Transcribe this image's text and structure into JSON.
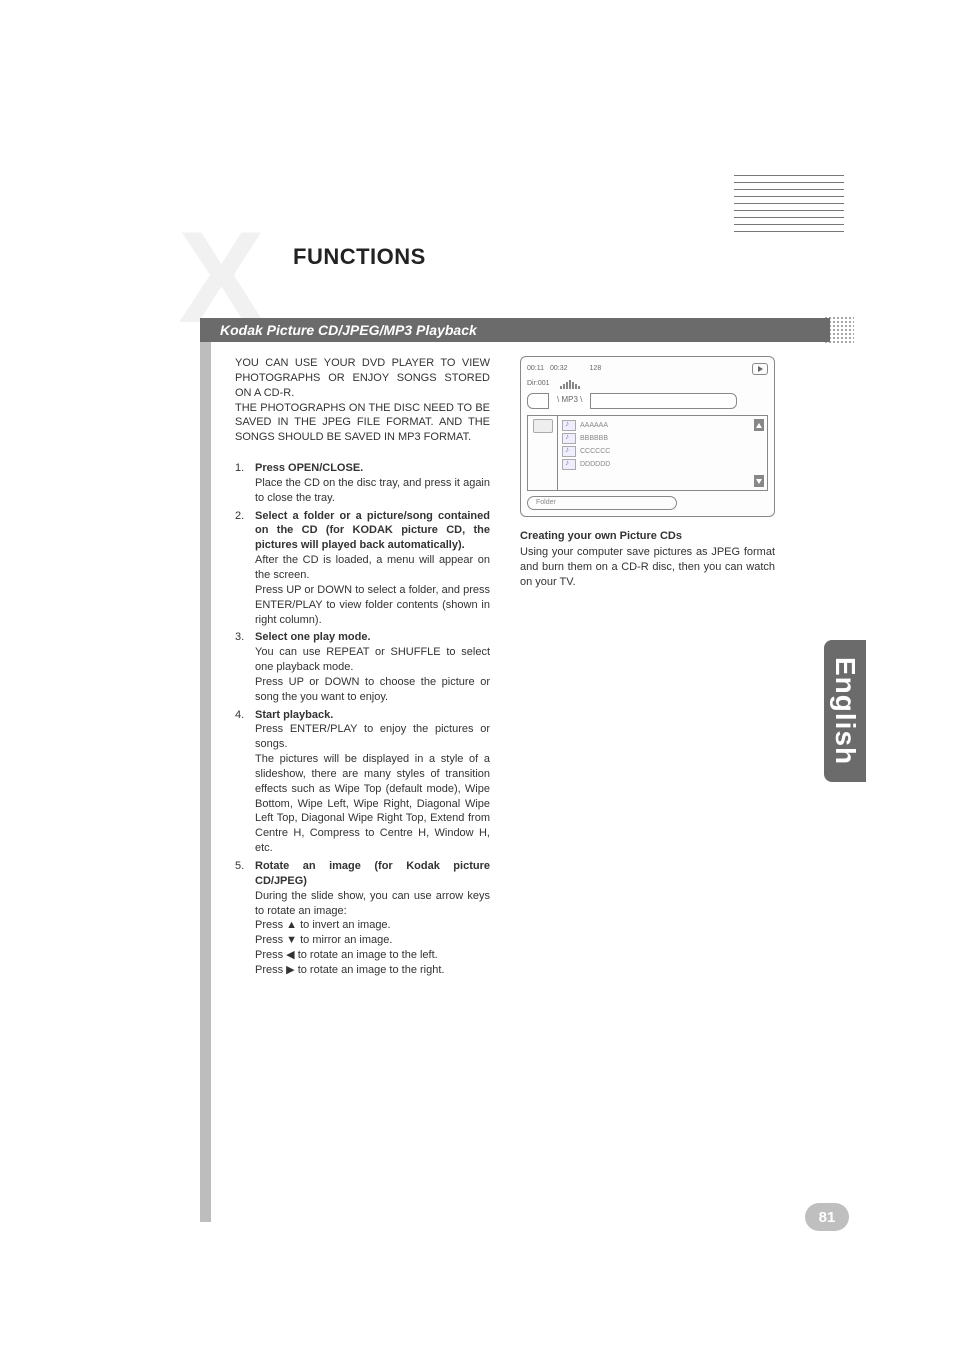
{
  "header": {
    "title": "FUNCTIONS"
  },
  "section_bar": "Kodak Picture CD/JPEG/MP3 Playback",
  "intro": "YOU CAN USE YOUR DVD PLAYER TO VIEW PHOTOGRAPHS OR ENJOY SONGS STORED ON A CD-R.\nTHE PHOTOGRAPHS ON THE DISC NEED TO BE SAVED IN THE JPEG FILE FORMAT. AND THE SONGS SHOULD BE SAVED IN MP3 FORMAT.",
  "steps": [
    {
      "num": "1.",
      "title": "Press OPEN/CLOSE.",
      "body": "Place the CD on the disc tray, and press it again to close the tray."
    },
    {
      "num": "2.",
      "title": "Select a folder or a picture/song contained on the CD (for KODAK picture CD, the pictures will played back automatically).",
      "body": "After the CD is loaded, a menu will appear on the screen.\nPress UP or DOWN to select a folder, and press ENTER/PLAY to view folder contents (shown in right column)."
    },
    {
      "num": "3.",
      "title": "Select one play mode.",
      "body": "You can use REPEAT or SHUFFLE to select one playback mode.\nPress UP or DOWN to choose the picture or song the you want to enjoy."
    },
    {
      "num": "4.",
      "title": "Start playback.",
      "body": "Press ENTER/PLAY to enjoy the pictures or songs.\nThe pictures will be displayed in a style of a slideshow, there are many styles of transition effects such as Wipe Top (default mode), Wipe Bottom, Wipe Left, Wipe Right, Diagonal Wipe Left Top, Diagonal Wipe Right Top, Extend from Centre H, Compress to Centre H, Window H, etc."
    },
    {
      "num": "5.",
      "title": "Rotate an image (for Kodak picture CD/JPEG)",
      "body": "During the slide show, you can use arrow keys to rotate an image:\nPress ▲ to invert an image.\nPress ▼ to mirror an image.\nPress ◀ to rotate an image to the left.\nPress ▶ to rotate an image to the right."
    }
  ],
  "player": {
    "time1": "00:11",
    "time2": "00:32",
    "bitrate": "128",
    "dir": "Dir:001",
    "tab": "\\ MP3 \\",
    "rows": [
      "AAAAAA",
      "BBBBBB",
      "CCCCCC",
      "DDDDDD"
    ],
    "folder_btn": "Folder",
    "bar_heights": [
      3,
      5,
      7,
      9,
      7,
      5,
      3
    ]
  },
  "create": {
    "title": "Creating your own Picture CDs",
    "body": "Using your computer save pictures as JPEG format and burn them on a CD-R disc, then you can watch on your TV."
  },
  "side_tab": "English",
  "page_number": "81",
  "colors": {
    "bar_bg": "#6b6b6b",
    "leftbar_bg": "#bdbdbd",
    "watermark": "#f1f1f1",
    "text": "#333333",
    "pill_bg": "#bfbfbf"
  }
}
